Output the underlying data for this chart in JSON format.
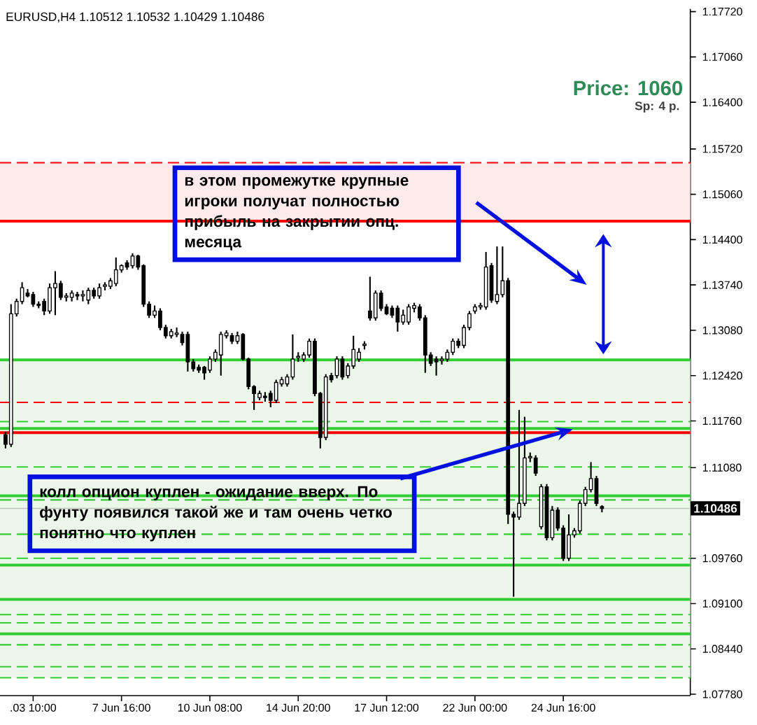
{
  "chart_data": {
    "type": "candlestick",
    "title": "EURUSD,H4  1.10512 1.10532 1.10429 1.10486",
    "annotations": [
      "Price: 1060",
      "Sp: 4 p.",
      "в этом промежутке крупные игроки получат полностью прибыль на закрытии опц. месяца",
      "колл опцион куплен - ожидание вверх. По фунту появился такой же и там очень четко понятно что куплен"
    ],
    "categories": [
      null,
      null,
      null,
      null,
      null,
      ".03 10:00",
      null,
      null,
      null,
      null,
      null,
      null,
      null,
      null,
      null,
      null,
      null,
      null,
      null,
      null,
      null,
      "7 Jun 16:00",
      null,
      null,
      null,
      null,
      null,
      null,
      null,
      null,
      null,
      null,
      null,
      null,
      null,
      null,
      null,
      "10 Jun 08:00",
      null,
      null,
      null,
      null,
      null,
      null,
      null,
      null,
      null,
      null,
      null,
      null,
      null,
      null,
      null,
      "14 Jun 20:00",
      null,
      null,
      null,
      null,
      null,
      null,
      null,
      null,
      null,
      null,
      null,
      null,
      null,
      null,
      null,
      "17 Jun 12:00",
      null,
      null,
      null,
      null,
      null,
      null,
      null,
      null,
      null,
      null,
      null,
      null,
      null,
      null,
      null,
      "22 Jun 00:00",
      null,
      null,
      null,
      null,
      null,
      null,
      null,
      null,
      null,
      null,
      null,
      null,
      null,
      null,
      null,
      "24 Jun 16:00",
      null,
      null,
      null,
      null,
      null,
      null,
      null,
      null,
      null,
      null,
      null,
      null,
      null,
      null,
      null,
      null,
      null,
      null,
      null,
      null,
      null,
      null,
      null
    ],
    "ohlc": [
      [
        1.1156,
        1.116,
        1.1136,
        1.1142
      ],
      [
        1.1142,
        1.1346,
        1.1138,
        1.1332
      ],
      [
        1.1332,
        1.1354,
        1.1328,
        1.135
      ],
      [
        1.135,
        1.1378,
        1.1346,
        1.137
      ],
      [
        1.1362,
        1.1368,
        1.1356,
        1.1358
      ],
      [
        1.136,
        1.1364,
        1.1342,
        1.1346
      ],
      [
        1.1346,
        1.135,
        1.134,
        1.1344
      ],
      [
        1.135,
        1.1354,
        1.133,
        1.1336
      ],
      [
        1.1336,
        1.1376,
        1.1332,
        1.137
      ],
      [
        1.137,
        1.1394,
        1.133,
        1.1376
      ],
      [
        1.1376,
        1.138,
        1.1352,
        1.1356
      ],
      [
        1.1356,
        1.1362,
        1.135,
        1.1358
      ],
      [
        1.1356,
        1.1366,
        1.135,
        1.1362
      ],
      [
        1.136,
        1.1364,
        1.1352,
        1.1358
      ],
      [
        1.1358,
        1.1366,
        1.135,
        1.136
      ],
      [
        1.1352,
        1.137,
        1.1346,
        1.1366
      ],
      [
        1.1366,
        1.137,
        1.1354,
        1.1358
      ],
      [
        1.1358,
        1.1376,
        1.1354,
        1.137
      ],
      [
        1.1372,
        1.1378,
        1.1366,
        1.1374
      ],
      [
        1.1372,
        1.1384,
        1.1368,
        1.138
      ],
      [
        1.1376,
        1.1414,
        1.1372,
        1.1396
      ],
      [
        1.1396,
        1.1404,
        1.1392,
        1.1402
      ],
      [
        1.1406,
        1.141,
        1.1396,
        1.14
      ],
      [
        1.1402,
        1.142,
        1.1398,
        1.1416
      ],
      [
        1.1416,
        1.1418,
        1.1396,
        1.14
      ],
      [
        1.1402,
        1.1404,
        1.1342,
        1.1346
      ],
      [
        1.1346,
        1.135,
        1.1326,
        1.133
      ],
      [
        1.133,
        1.1344,
        1.1326,
        1.1336
      ],
      [
        1.1336,
        1.134,
        1.1308,
        1.1312
      ],
      [
        1.1312,
        1.1316,
        1.1296,
        1.13
      ],
      [
        1.13,
        1.131,
        1.1296,
        1.1306
      ],
      [
        1.1302,
        1.1312,
        1.1298,
        1.1304
      ],
      [
        1.1302,
        1.1306,
        1.1286,
        1.129
      ],
      [
        1.1302,
        1.1306,
        1.1248,
        1.1262
      ],
      [
        1.1262,
        1.1266,
        1.1248,
        1.1252
      ],
      [
        1.1254,
        1.1258,
        1.1246,
        1.125
      ],
      [
        1.1254,
        1.1256,
        1.1236,
        1.1246
      ],
      [
        1.125,
        1.127,
        1.1246,
        1.1266
      ],
      [
        1.1266,
        1.128,
        1.1262,
        1.1276
      ],
      [
        1.1272,
        1.1306,
        1.1242,
        1.1302
      ],
      [
        1.13,
        1.1308,
        1.1296,
        1.1304
      ],
      [
        1.13,
        1.1304,
        1.1288,
        1.1292
      ],
      [
        1.1292,
        1.1306,
        1.1288,
        1.13
      ],
      [
        1.1302,
        1.1304,
        1.1264,
        1.1266
      ],
      [
        1.1266,
        1.1268,
        1.1222,
        1.1226
      ],
      [
        1.1226,
        1.1228,
        1.1192,
        1.1216
      ],
      [
        1.121,
        1.122,
        1.1206,
        1.1216
      ],
      [
        1.1212,
        1.1218,
        1.1204,
        1.121
      ],
      [
        1.1216,
        1.122,
        1.1196,
        1.1206
      ],
      [
        1.1206,
        1.1236,
        1.1202,
        1.1232
      ],
      [
        1.123,
        1.124,
        1.1226,
        1.1236
      ],
      [
        1.123,
        1.1244,
        1.1226,
        1.124
      ],
      [
        1.124,
        1.1302,
        1.1236,
        1.1266
      ],
      [
        1.1268,
        1.1276,
        1.1262,
        1.127
      ],
      [
        1.1266,
        1.1276,
        1.1262,
        1.1272
      ],
      [
        1.1272,
        1.1296,
        1.1268,
        1.1292
      ],
      [
        1.1292,
        1.1296,
        1.1212,
        1.1216
      ],
      [
        1.1216,
        1.1218,
        1.1136,
        1.1152
      ],
      [
        1.1152,
        1.1244,
        1.1148,
        1.124
      ],
      [
        1.1242,
        1.1246,
        1.1232,
        1.1236
      ],
      [
        1.1242,
        1.127,
        1.1238,
        1.1266
      ],
      [
        1.1266,
        1.127,
        1.1236,
        1.124
      ],
      [
        1.1242,
        1.126,
        1.1238,
        1.1256
      ],
      [
        1.1256,
        1.13,
        1.1252,
        1.128
      ],
      [
        1.1266,
        1.1282,
        1.1262,
        1.1276
      ],
      [
        1.1286,
        1.1292,
        1.128,
        1.1288
      ],
      [
        1.1336,
        1.1386,
        1.1322,
        1.1326
      ],
      [
        1.1326,
        1.1366,
        1.1322,
        1.1362
      ],
      [
        1.1362,
        1.1366,
        1.1336,
        1.134
      ],
      [
        1.1342,
        1.1346,
        1.133,
        1.1332
      ],
      [
        1.134,
        1.1344,
        1.1326,
        1.133
      ],
      [
        1.134,
        1.1344,
        1.1306,
        1.132
      ],
      [
        1.132,
        1.1338,
        1.1316,
        1.133
      ],
      [
        1.132,
        1.1346,
        1.1316,
        1.1342
      ],
      [
        1.134,
        1.1348,
        1.1334,
        1.1344
      ],
      [
        1.1342,
        1.1346,
        1.1322,
        1.1326
      ],
      [
        1.1326,
        1.133,
        1.1246,
        1.1272
      ],
      [
        1.1272,
        1.1276,
        1.1256,
        1.126
      ],
      [
        1.1266,
        1.127,
        1.1242,
        1.1262
      ],
      [
        1.1264,
        1.127,
        1.1258,
        1.1266
      ],
      [
        1.1266,
        1.128,
        1.1262,
        1.1276
      ],
      [
        1.1276,
        1.1296,
        1.1272,
        1.1292
      ],
      [
        1.1292,
        1.1296,
        1.1282,
        1.1286
      ],
      [
        1.1286,
        1.1316,
        1.1282,
        1.1312
      ],
      [
        1.1312,
        1.1336,
        1.1308,
        1.1332
      ],
      [
        1.1336,
        1.1346,
        1.1332,
        1.1342
      ],
      [
        1.1342,
        1.1348,
        1.1338,
        1.1344
      ],
      [
        1.1342,
        1.1422,
        1.1338,
        1.14
      ],
      [
        1.1402,
        1.1406,
        1.1348,
        1.1352
      ],
      [
        1.135,
        1.143,
        1.1346,
        1.136
      ],
      [
        1.136,
        1.143,
        1.1356,
        1.138
      ],
      [
        1.138,
        1.1384,
        1.1026,
        1.104
      ],
      [
        1.104,
        1.1044,
        1.092,
        1.1036
      ],
      [
        1.1036,
        1.1192,
        1.1032,
        1.1056
      ],
      [
        1.1056,
        1.1182,
        1.1052,
        1.1122
      ],
      [
        1.1122,
        1.113,
        1.1116,
        1.1124
      ],
      [
        1.1122,
        1.1126,
        1.1096,
        1.11
      ],
      [
        1.1022,
        1.1084,
        1.1018,
        1.108
      ],
      [
        1.108,
        1.1084,
        1.1002,
        1.1006
      ],
      [
        1.1006,
        1.1052,
        1.1002,
        1.1046
      ],
      [
        1.1046,
        1.105,
        1.1016,
        1.102
      ],
      [
        1.102,
        1.1024,
        1.0972,
        1.0976
      ],
      [
        1.0976,
        1.104,
        1.0972,
        1.101
      ],
      [
        1.101,
        1.102,
        1.1006,
        1.1016
      ],
      [
        1.1016,
        1.106,
        1.1012,
        1.1056
      ],
      [
        1.1056,
        1.108,
        1.1052,
        1.1076
      ],
      [
        1.1076,
        1.1116,
        1.1072,
        1.1092
      ],
      [
        1.1092,
        1.1096,
        1.1052,
        1.1056
      ],
      [
        1.10512,
        1.10532,
        1.10429,
        1.10486
      ],
      null,
      null,
      null,
      null,
      null,
      null,
      null,
      null,
      null,
      null,
      null,
      null,
      null,
      null,
      null,
      null
    ],
    "ylim": [
      1.0776,
      1.1776
    ],
    "yticks": [
      {
        "value": 1.0778,
        "label": "1.07780"
      },
      {
        "value": 1.0844,
        "label": "1.08440"
      },
      {
        "value": 1.091,
        "label": "1.09100"
      },
      {
        "value": 1.0976,
        "label": "1.09760"
      },
      {
        "value": 1.1108,
        "label": "1.11080"
      },
      {
        "value": 1.1176,
        "label": "1.11760"
      },
      {
        "value": 1.1242,
        "label": "1.12420"
      },
      {
        "value": 1.1308,
        "label": "1.13080"
      },
      {
        "value": 1.1374,
        "label": "1.13740"
      },
      {
        "value": 1.144,
        "label": "1.14400"
      },
      {
        "value": 1.1506,
        "label": "1.15060"
      },
      {
        "value": 1.1572,
        "label": "1.15720"
      },
      {
        "value": 1.164,
        "label": "1.16400"
      },
      {
        "value": 1.1706,
        "label": "1.17060"
      },
      {
        "value": 1.1772,
        "label": "1.17720"
      }
    ],
    "bands": [
      {
        "axis": "y",
        "from": 1.1465,
        "to": 1.1552,
        "color": "#fdeaea"
      },
      {
        "axis": "y",
        "from": 1.0802,
        "to": 1.1265,
        "color": "#ebf7e9"
      }
    ],
    "ref_lines": [
      {
        "axis": "y",
        "value": 1.1265,
        "color": "#33cc33",
        "line_style": "solid"
      },
      {
        "axis": "y",
        "value": 1.1165,
        "color": "#33cc33",
        "line_style": "solid"
      },
      {
        "axis": "y",
        "value": 1.1067,
        "color": "#33cc33",
        "line_style": "solid"
      },
      {
        "axis": "y",
        "value": 1.0966,
        "color": "#33cc33",
        "line_style": "solid"
      },
      {
        "axis": "y",
        "value": 1.0916,
        "color": "#33cc33",
        "line_style": "solid"
      },
      {
        "axis": "y",
        "value": 1.0866,
        "color": "#33cc33",
        "line_style": "solid"
      },
      {
        "axis": "y",
        "value": 1.1175,
        "color": "#33cc33",
        "line_style": "dashed"
      },
      {
        "axis": "y",
        "value": 1.1109,
        "color": "#33cc33",
        "line_style": "dashed"
      },
      {
        "axis": "y",
        "value": 1.1061,
        "color": "#33cc33",
        "line_style": "dashed"
      },
      {
        "axis": "y",
        "value": 1.1011,
        "color": "#33cc33",
        "line_style": "dashed"
      },
      {
        "axis": "y",
        "value": 1.0976,
        "color": "#33cc33",
        "line_style": "dashed"
      },
      {
        "axis": "y",
        "value": 1.0894,
        "color": "#33cc33",
        "line_style": "dashed"
      },
      {
        "axis": "y",
        "value": 1.0882,
        "color": "#33cc33",
        "line_style": "dashed"
      },
      {
        "axis": "y",
        "value": 1.085,
        "color": "#33cc33",
        "line_style": "dashed"
      },
      {
        "axis": "y",
        "value": 1.0818,
        "color": "#33cc33",
        "line_style": "dashed"
      },
      {
        "axis": "y",
        "value": 1.0802,
        "color": "#33cc33",
        "line_style": "dashed"
      },
      {
        "axis": "y",
        "value": 1.1467,
        "color": "#ff0000",
        "line_style": "solid"
      },
      {
        "axis": "y",
        "value": 1.1159,
        "color": "#ff0000",
        "line_style": "solid"
      },
      {
        "axis": "y",
        "value": 1.1552,
        "color": "#ff0000",
        "line_style": "dashed"
      },
      {
        "axis": "y",
        "value": 1.1203,
        "color": "#ff0000",
        "line_style": "dashed"
      },
      {
        "axis": "y",
        "value": 1.10486,
        "color": "#c0c0c0",
        "line_style": "solid",
        "label": "1.10486"
      }
    ]
  }
}
